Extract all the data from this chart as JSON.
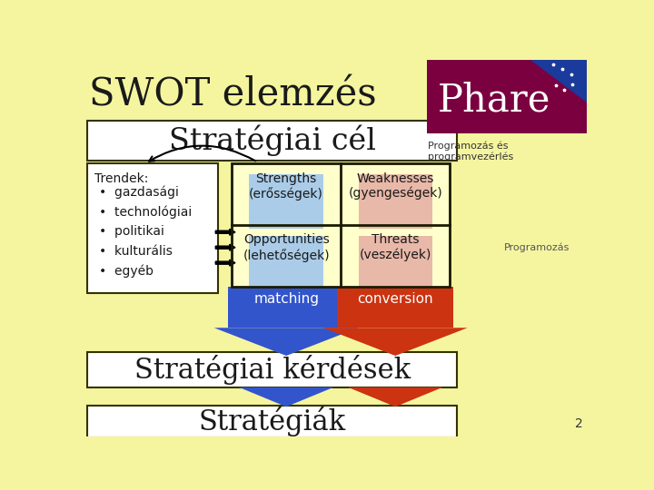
{
  "bg_color": "#f5f5a0",
  "title": "SWOT elemzés",
  "title_color": "#1a1a1a",
  "title_fontsize": 30,
  "strat_cel_text": "Stratégiai cél",
  "strat_kerdesek_text": "Stratégiai kérdések",
  "strategiak_text": "Stratégiák",
  "trendek_header": "Trendek:",
  "trendek_items": [
    "gazdasági",
    "technológiai",
    "politikai",
    "kulturális",
    "egyéb"
  ],
  "strengths_text": "Strengths\n(erősségek)",
  "weaknesses_text": "Weaknesses\n(gyengeségek)",
  "opportunities_text": "Opportunities\n(lehetőségek)",
  "threats_text": "Threats\n(veszélyek)",
  "matching_text": "matching",
  "conversion_text": "conversion",
  "programozas_text": "Programozás",
  "programozas_es_text": "Programozás és\nprogramvezérlés",
  "phare_text": "Phare",
  "cell_bg_blue": "#aacce8",
  "cell_bg_pink": "#e8b8a8",
  "cell_bg_yellow": "#ffffcc",
  "box_edge": "#333300",
  "arrow_blue": "#3355cc",
  "arrow_red": "#cc3311",
  "white_box": "#ffffff",
  "phare_bg": "#7a0040",
  "eu_blue": "#1a3a9c",
  "text_dark": "#1a1a1a",
  "cell_text_color": "#1a1a1a",
  "page_num": "2",
  "strat_cel_fontsize": 24,
  "strat_kerd_fontsize": 22,
  "strategiak_fontsize": 22,
  "cell_fontsize": 10
}
